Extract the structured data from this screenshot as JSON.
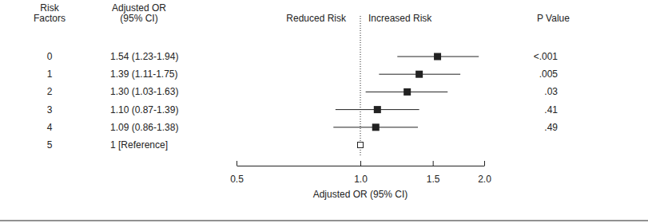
{
  "chart_data": {
    "type": "forest",
    "headers": {
      "category": [
        "Risk",
        "Factors"
      ],
      "estimate": [
        "Adjusted OR",
        "(95% CI)"
      ],
      "p_value": "P Value"
    },
    "annotations": [
      "Reduced Risk",
      "Increased Risk"
    ],
    "xlabel": "Adjusted OR (95% CI)",
    "categories": [
      "0",
      "1",
      "2",
      "3",
      "4",
      "5"
    ],
    "values": [
      1.54,
      1.39,
      1.3,
      1.1,
      1.09,
      1
    ],
    "ci_lower": [
      1.23,
      1.11,
      1.03,
      0.87,
      0.86,
      null
    ],
    "ci_upper": [
      1.94,
      1.75,
      1.63,
      1.39,
      1.38,
      null
    ],
    "value_labels": [
      "1.54 (1.23-1.94)",
      "1.39 (1.11-1.75)",
      "1.30 (1.03-1.63)",
      "1.10 (0.87-1.39)",
      "1.09 (0.86-1.38)",
      "1 [Reference]"
    ],
    "p_values": [
      "<.001",
      ".005",
      ".03",
      ".41",
      ".49",
      null
    ],
    "reference_line": 1,
    "log": "x",
    "xlim": [
      0.5,
      2.0
    ],
    "xticks": [
      0.5,
      {
        "value": 1,
        "label": "1.0"
      },
      1.5,
      {
        "value": 2,
        "label": "2.0"
      }
    ],
    "color": "#222222"
  }
}
